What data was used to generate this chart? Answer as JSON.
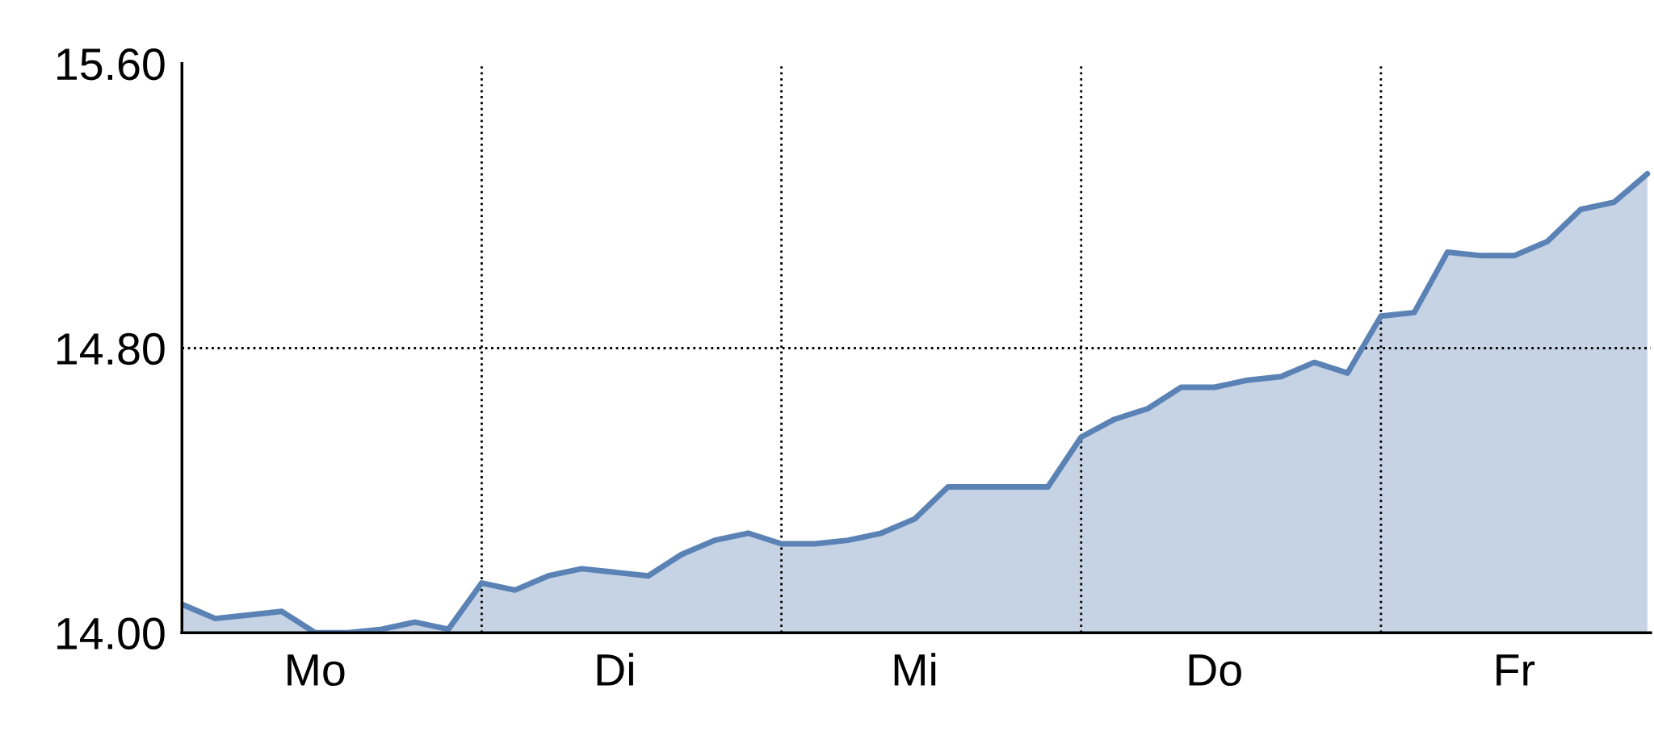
{
  "chart_data": {
    "type": "area",
    "categories": [
      null,
      null,
      null,
      null,
      "Mo",
      null,
      null,
      null,
      null,
      null,
      null,
      null,
      null,
      "Di",
      null,
      null,
      null,
      null,
      null,
      null,
      null,
      null,
      "Mi",
      null,
      null,
      null,
      null,
      null,
      null,
      null,
      null,
      "Do",
      null,
      null,
      null,
      null,
      null,
      null,
      null,
      null,
      "Fr",
      null,
      null,
      null,
      null
    ],
    "series": [
      {
        "color": "#5b82b5",
        "values": [
          14.08,
          14.04,
          14.05,
          14.06,
          14.0,
          14.0,
          14.01,
          14.03,
          14.01,
          14.14,
          14.12,
          14.16,
          14.18,
          14.17,
          14.16,
          14.22,
          14.26,
          14.28,
          14.25,
          14.25,
          14.26,
          14.28,
          14.32,
          14.41,
          14.41,
          14.41,
          14.41,
          14.55,
          14.6,
          14.63,
          14.69,
          14.69,
          14.71,
          14.72,
          14.76,
          14.73,
          14.89,
          14.9,
          15.07,
          15.06,
          15.06,
          15.1,
          15.19,
          15.21,
          15.29
        ]
      }
    ],
    "ylim": [
      14.0,
      15.6
    ],
    "yticks": [
      {
        "value": 14.0,
        "label": "14.00"
      },
      {
        "value": 14.8,
        "label": "14.80"
      },
      {
        "value": 15.6,
        "label": "15.60"
      }
    ],
    "ref_lines": [
      {
        "axis": "y",
        "value": 14.8,
        "line_style": "dotted",
        "color": "#000000"
      }
    ],
    "grid": "x",
    "legend": false
  }
}
